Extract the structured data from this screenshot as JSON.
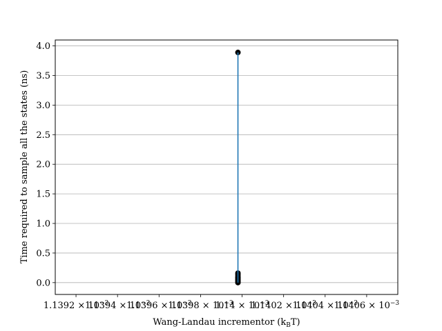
{
  "chart_data": {
    "type": "line",
    "title": "",
    "xlabel": "Wang-Landau incrementor (k",
    "xlabel_sub": "B",
    "xlabel_suffix": "T)",
    "ylabel": "Time required to sample all the states (ns)",
    "xlim": [
      0.0011391,
      0.00114075
    ],
    "ylim": [
      -0.2,
      4.1
    ],
    "x_ticks": [
      0.0011392,
      0.0011394,
      0.0011396,
      0.0011398,
      0.00114,
      0.0011402,
      0.0011404,
      0.0011406
    ],
    "x_tick_labels": [
      "1.1392 × 10",
      "1.1394 × 10",
      "1.1396 × 10",
      "1.1398 × 10",
      "1.14 × 10",
      "1.1402 × 10",
      "1.1404 × 10",
      "1.1406 × 10"
    ],
    "x_tick_exponent": "−3",
    "y_ticks": [
      0.0,
      0.5,
      1.0,
      1.5,
      2.0,
      2.5,
      3.0,
      3.5,
      4.0
    ],
    "y_tick_labels": [
      "0.0",
      "0.5",
      "1.0",
      "1.5",
      "2.0",
      "2.5",
      "3.0",
      "3.5",
      "4.0"
    ],
    "grid": "horizontal",
    "series": [
      {
        "color": "#1f77b4",
        "marker_color": "#000000",
        "points": [
          {
            "x": 0.00113998,
            "y": 3.89
          },
          {
            "x": 0.00113998,
            "y": 0.16
          },
          {
            "x": 0.00113998,
            "y": 0.13
          },
          {
            "x": 0.00113998,
            "y": 0.1
          },
          {
            "x": 0.00113998,
            "y": 0.08
          },
          {
            "x": 0.00113998,
            "y": 0.06
          },
          {
            "x": 0.00113998,
            "y": 0.04
          },
          {
            "x": 0.00113998,
            "y": 0.02
          },
          {
            "x": 0.00113998,
            "y": 0.0
          }
        ]
      }
    ]
  }
}
